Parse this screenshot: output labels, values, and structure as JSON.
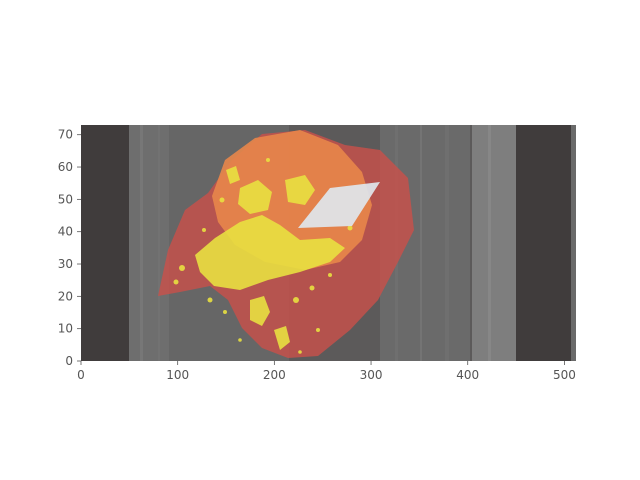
{
  "chart_data": {
    "type": "heatmap",
    "title": "",
    "xlabel": "",
    "ylabel": "",
    "xlim": [
      0,
      512
    ],
    "ylim": [
      0,
      73
    ],
    "x_ticks": [
      0,
      100,
      200,
      300,
      400,
      500
    ],
    "y_ticks": [
      0,
      10,
      20,
      30,
      40,
      50,
      60,
      70
    ],
    "x_tick_labels": [
      "0",
      "100",
      "200",
      "300",
      "400",
      "500"
    ],
    "y_tick_labels": [
      "0",
      "10",
      "20",
      "30",
      "40",
      "50",
      "60",
      "70"
    ],
    "grid": false,
    "image": "grayscale scan slice with colored segmentation overlay",
    "overlay_colors": {
      "outer_region": "#c8504a",
      "inner_region": "#e8864a",
      "hotspots": "#e8e040",
      "highlight_patch": "#e0e6ec"
    },
    "background_colors": {
      "dark_band": "#403c3c",
      "mid_gray": "#6a6a6a",
      "light_gray": "#8a8a8a"
    }
  }
}
